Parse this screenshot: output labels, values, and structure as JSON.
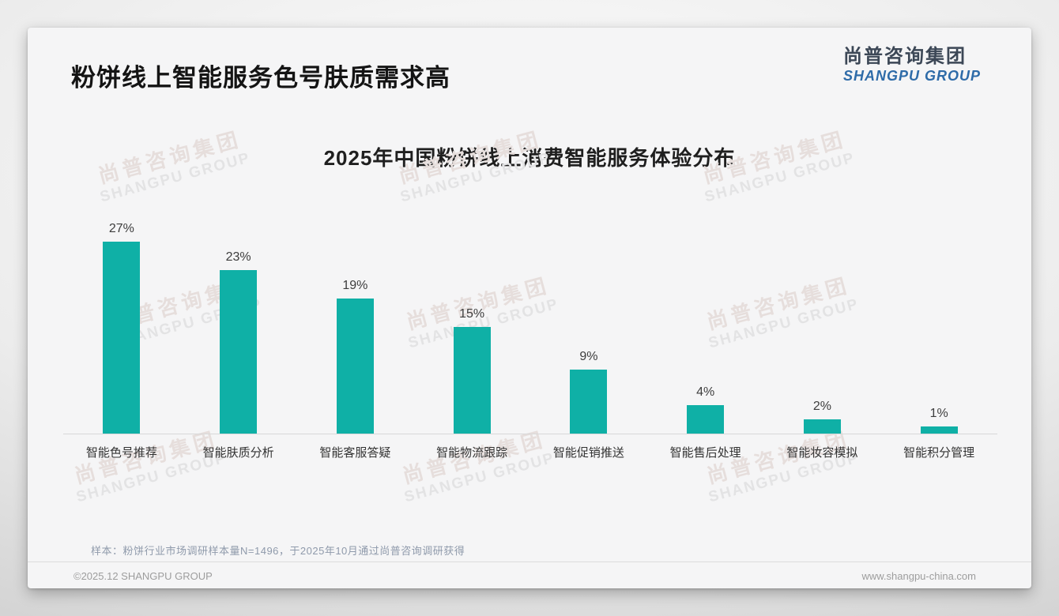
{
  "header": {
    "title": "粉饼线上智能服务色号肤质需求高",
    "logo_cn": "尚普咨询集团",
    "logo_en": "SHANGPU GROUP"
  },
  "watermark": {
    "line1": "尚普咨询集团",
    "line2": "SHANGPU GROUP"
  },
  "chart_data": {
    "type": "bar",
    "title": "2025年中国粉饼线上消费智能服务体验分布",
    "categories": [
      "智能色号推荐",
      "智能肤质分析",
      "智能客服答疑",
      "智能物流跟踪",
      "智能促销推送",
      "智能售后处理",
      "智能妆容模拟",
      "智能积分管理"
    ],
    "values": [
      27,
      23,
      19,
      15,
      9,
      4,
      2,
      1
    ],
    "data_labels": [
      "27%",
      "23%",
      "19%",
      "15%",
      "9%",
      "4%",
      "2%",
      "1%"
    ],
    "bar_color": "#0fb0a6",
    "ylim": [
      0,
      30
    ],
    "grid": false,
    "legend": "none",
    "xlabel": "",
    "ylabel": ""
  },
  "footnote": {
    "sample_note": "样本：粉饼行业市场调研样本量N=1496，于2025年10月通过尚普咨询调研获得"
  },
  "footer": {
    "copyright": "©2025.12 SHANGPU GROUP",
    "website": "www.shangpu-china.com"
  }
}
